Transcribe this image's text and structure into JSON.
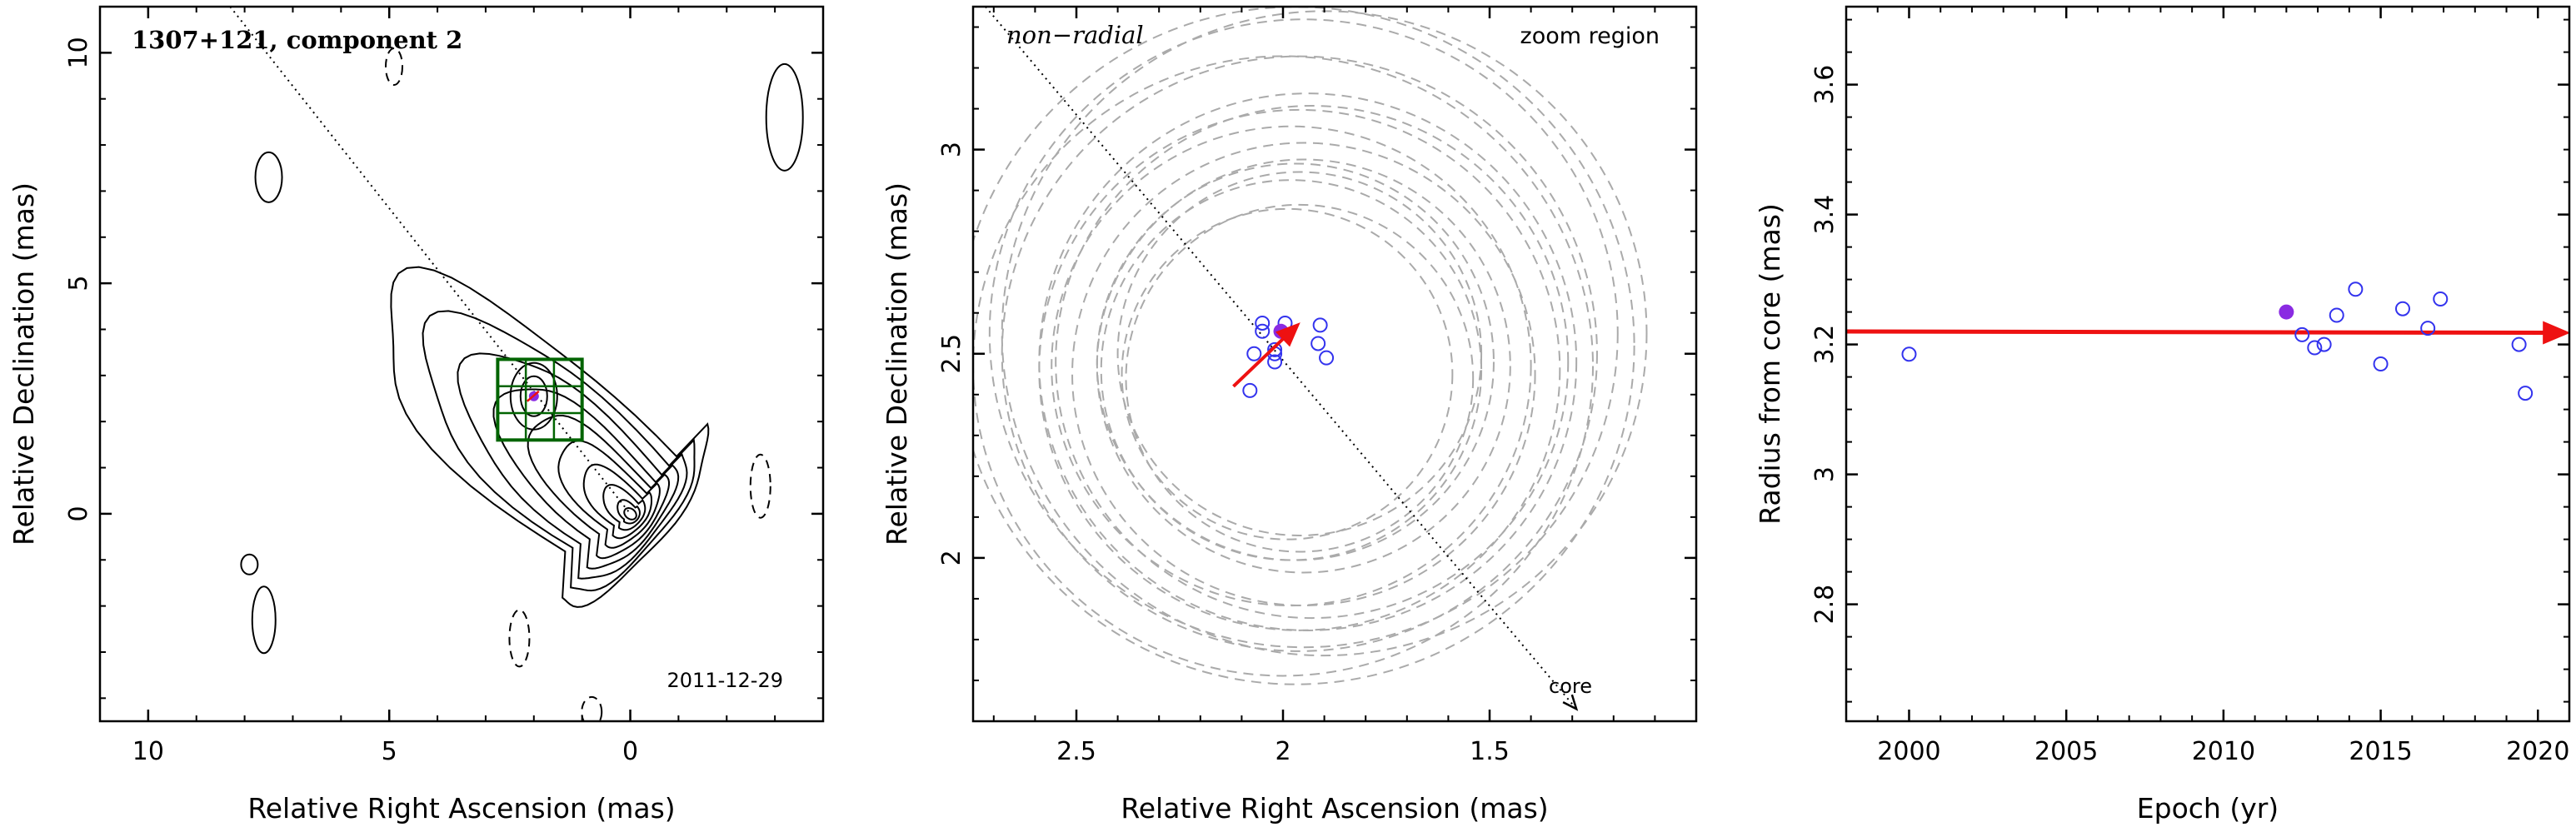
{
  "chart_data": [
    {
      "type": "contour",
      "title": "1307+121, component 2",
      "date": "2011-12-29",
      "xlabel": "Relative Right Ascension (mas)",
      "ylabel": "Relative Declination (mas)",
      "xlim": [
        11,
        -4
      ],
      "ylim": [
        -4.5,
        11
      ],
      "xticks": [
        10,
        5,
        0
      ],
      "yticks": [
        0,
        5,
        10
      ],
      "core_position": [
        0,
        0
      ],
      "component_position": [
        2.0,
        2.55
      ],
      "zoom_box": {
        "x": [
          2.75,
          1.0
        ],
        "y": [
          3.35,
          1.6
        ]
      },
      "radial_line": {
        "from": [
          8.3,
          11
        ],
        "to": [
          0,
          0
        ]
      },
      "colors": {
        "box": "#006400",
        "component": "#8a2be2",
        "arrow": "#ee1111"
      }
    },
    {
      "type": "scatter",
      "title": "zoom region",
      "annotation": "non−radial",
      "core_label": "core",
      "xlabel": "Relative Right Ascension (mas)",
      "ylabel": "Relative Declination (mas)",
      "xlim": [
        2.75,
        1.0
      ],
      "ylim": [
        1.6,
        3.35
      ],
      "xticks": [
        2.5,
        2,
        1.5
      ],
      "yticks": [
        2,
        2.5,
        3
      ],
      "points": [
        [
          2.08,
          2.41
        ],
        [
          2.07,
          2.5
        ],
        [
          2.05,
          2.555
        ],
        [
          2.05,
          2.575
        ],
        [
          2.02,
          2.48
        ],
        [
          2.02,
          2.5
        ],
        [
          2.02,
          2.51
        ],
        [
          1.995,
          2.575
        ],
        [
          1.91,
          2.57
        ],
        [
          1.915,
          2.525
        ],
        [
          1.895,
          2.49
        ]
      ],
      "highlight_point": [
        2.005,
        2.555
      ],
      "motion_vector": {
        "from": [
          2.12,
          2.42
        ],
        "to": [
          1.96,
          2.575
        ]
      },
      "radial_line": {
        "from": [
          2.72,
          3.35
        ],
        "to": [
          1.29,
          1.63
        ]
      },
      "circles": [
        {
          "c": [
            1.95,
            2.45
          ],
          "r": 0.56
        },
        {
          "c": [
            1.96,
            2.46
          ],
          "r": 0.63
        },
        {
          "c": [
            1.98,
            2.47
          ],
          "r": 0.58
        },
        {
          "c": [
            1.94,
            2.48
          ],
          "r": 0.65
        },
        {
          "c": [
            2.0,
            2.47
          ],
          "r": 0.75
        },
        {
          "c": [
            1.97,
            2.52
          ],
          "r": 0.82
        },
        {
          "c": [
            1.95,
            2.55
          ],
          "r": 0.76
        },
        {
          "c": [
            1.96,
            2.5
          ],
          "r": 0.72
        },
        {
          "c": [
            1.9,
            2.55
          ],
          "r": 0.78
        },
        {
          "c": [
            1.93,
            2.48
          ],
          "r": 0.62
        },
        {
          "c": [
            1.96,
            2.44
          ],
          "r": 0.42
        },
        {
          "c": [
            1.98,
            2.46
          ],
          "r": 0.46
        },
        {
          "c": [
            1.97,
            2.48
          ],
          "r": 0.48
        },
        {
          "c": [
            1.99,
            2.45
          ],
          "r": 0.4
        },
        {
          "c": [
            1.96,
            2.5
          ],
          "r": 0.44
        },
        {
          "c": [
            1.95,
            2.47
          ],
          "r": 0.5
        }
      ]
    },
    {
      "type": "scatter",
      "xlabel": "Epoch (yr)",
      "ylabel": "Radius from core (mas)",
      "xlim": [
        1998,
        2021
      ],
      "ylim": [
        2.62,
        3.72
      ],
      "xticks": [
        2000,
        2005,
        2010,
        2015,
        2020
      ],
      "yticks": [
        2.8,
        3,
        3.2,
        3.4,
        3.6
      ],
      "x": [
        2000.0,
        2012.5,
        2012.9,
        2013.2,
        2013.6,
        2014.2,
        2015.0,
        2015.7,
        2016.5,
        2016.9,
        2019.4,
        2019.6
      ],
      "y": [
        3.185,
        3.215,
        3.195,
        3.2,
        3.245,
        3.285,
        3.17,
        3.255,
        3.225,
        3.27,
        3.2,
        3.125
      ],
      "highlight_point": [
        2012.0,
        3.25
      ],
      "trend": {
        "x": [
          1998,
          2021
        ],
        "y": [
          3.22,
          3.218
        ]
      }
    }
  ]
}
